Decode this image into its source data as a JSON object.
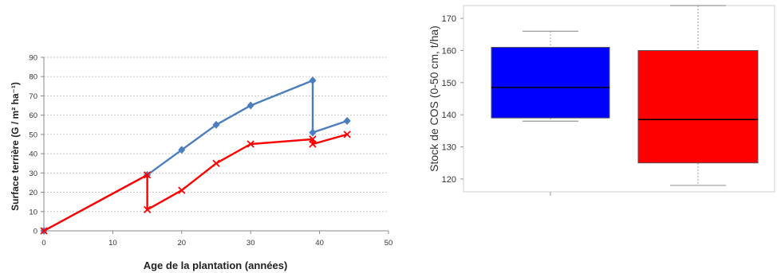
{
  "chart_data": [
    {
      "type": "line",
      "xlabel": "Age de la plantation (années)",
      "ylabel": "Surface terrière (G / m² ha⁻¹)",
      "xlim": [
        0,
        50
      ],
      "ylim": [
        0,
        90
      ],
      "xticks": [
        "0",
        "10",
        "20",
        "30",
        "40",
        "50"
      ],
      "yticks": [
        "0",
        "10",
        "20",
        "30",
        "40",
        "50",
        "60",
        "70",
        "80",
        "90"
      ],
      "grid": true,
      "series": [
        {
          "color": "#4a7ebf",
          "marker": "diamond",
          "points": [
            [
              0,
              0
            ],
            [
              15,
              29
            ],
            [
              20,
              42
            ],
            [
              25,
              55
            ],
            [
              30,
              65
            ],
            [
              39,
              78
            ],
            [
              39,
              51
            ],
            [
              44,
              57
            ]
          ]
        },
        {
          "color": "#ff0000",
          "marker": "x",
          "points": [
            [
              0,
              0
            ],
            [
              15,
              29
            ],
            [
              15,
              11
            ],
            [
              20,
              21
            ],
            [
              25,
              35
            ],
            [
              30,
              45
            ],
            [
              39,
              47.5
            ],
            [
              39,
              45
            ],
            [
              44,
              50
            ]
          ]
        }
      ]
    },
    {
      "type": "box",
      "ylabel": "Stock de COS (0-50 cm, t/ha)",
      "ylim": [
        116,
        174
      ],
      "yticks": [
        "120",
        "130",
        "140",
        "150",
        "160",
        "170"
      ],
      "boxes": [
        {
          "color": "#0000ff",
          "min": 138,
          "q1": 139,
          "median": 148.5,
          "q3": 161,
          "max": 166
        },
        {
          "color": "#ff0000",
          "min": 118,
          "q1": 125,
          "median": 138.5,
          "q3": 160,
          "max": 174
        }
      ]
    }
  ]
}
